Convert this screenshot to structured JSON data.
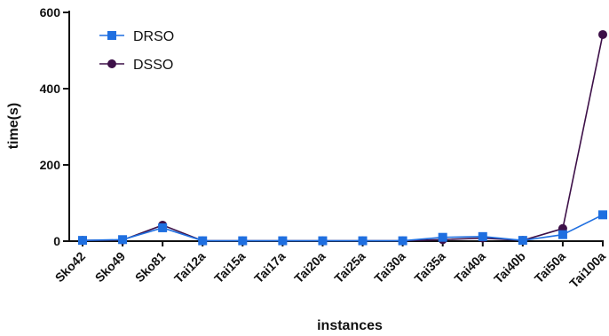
{
  "chart_data": {
    "type": "line",
    "xlabel": "instances",
    "ylabel": "time(s)",
    "ylim": [
      0,
      600
    ],
    "yticks": [
      0,
      200,
      400,
      600
    ],
    "grid": false,
    "legend_position": "top-left",
    "categories": [
      "Sko42",
      "Sko49",
      "Sko81",
      "Tai12a",
      "Tai15a",
      "Tai17a",
      "Tai20a",
      "Tai25a",
      "Tai30a",
      "Tai35a",
      "Tai40a",
      "Tai40b",
      "Tai50a",
      "Tai100a"
    ],
    "series": [
      {
        "name": "DRSO",
        "marker": "square",
        "color": "#1f6fe0",
        "values": [
          2,
          4,
          35,
          1,
          1,
          1,
          1,
          1,
          1,
          10,
          12,
          2,
          17,
          69
        ]
      },
      {
        "name": "DSSO",
        "marker": "circle",
        "color": "#3d1048",
        "values": [
          2,
          3,
          42,
          1,
          1,
          1,
          1,
          1,
          1,
          4,
          8,
          2,
          33,
          542
        ]
      }
    ]
  }
}
